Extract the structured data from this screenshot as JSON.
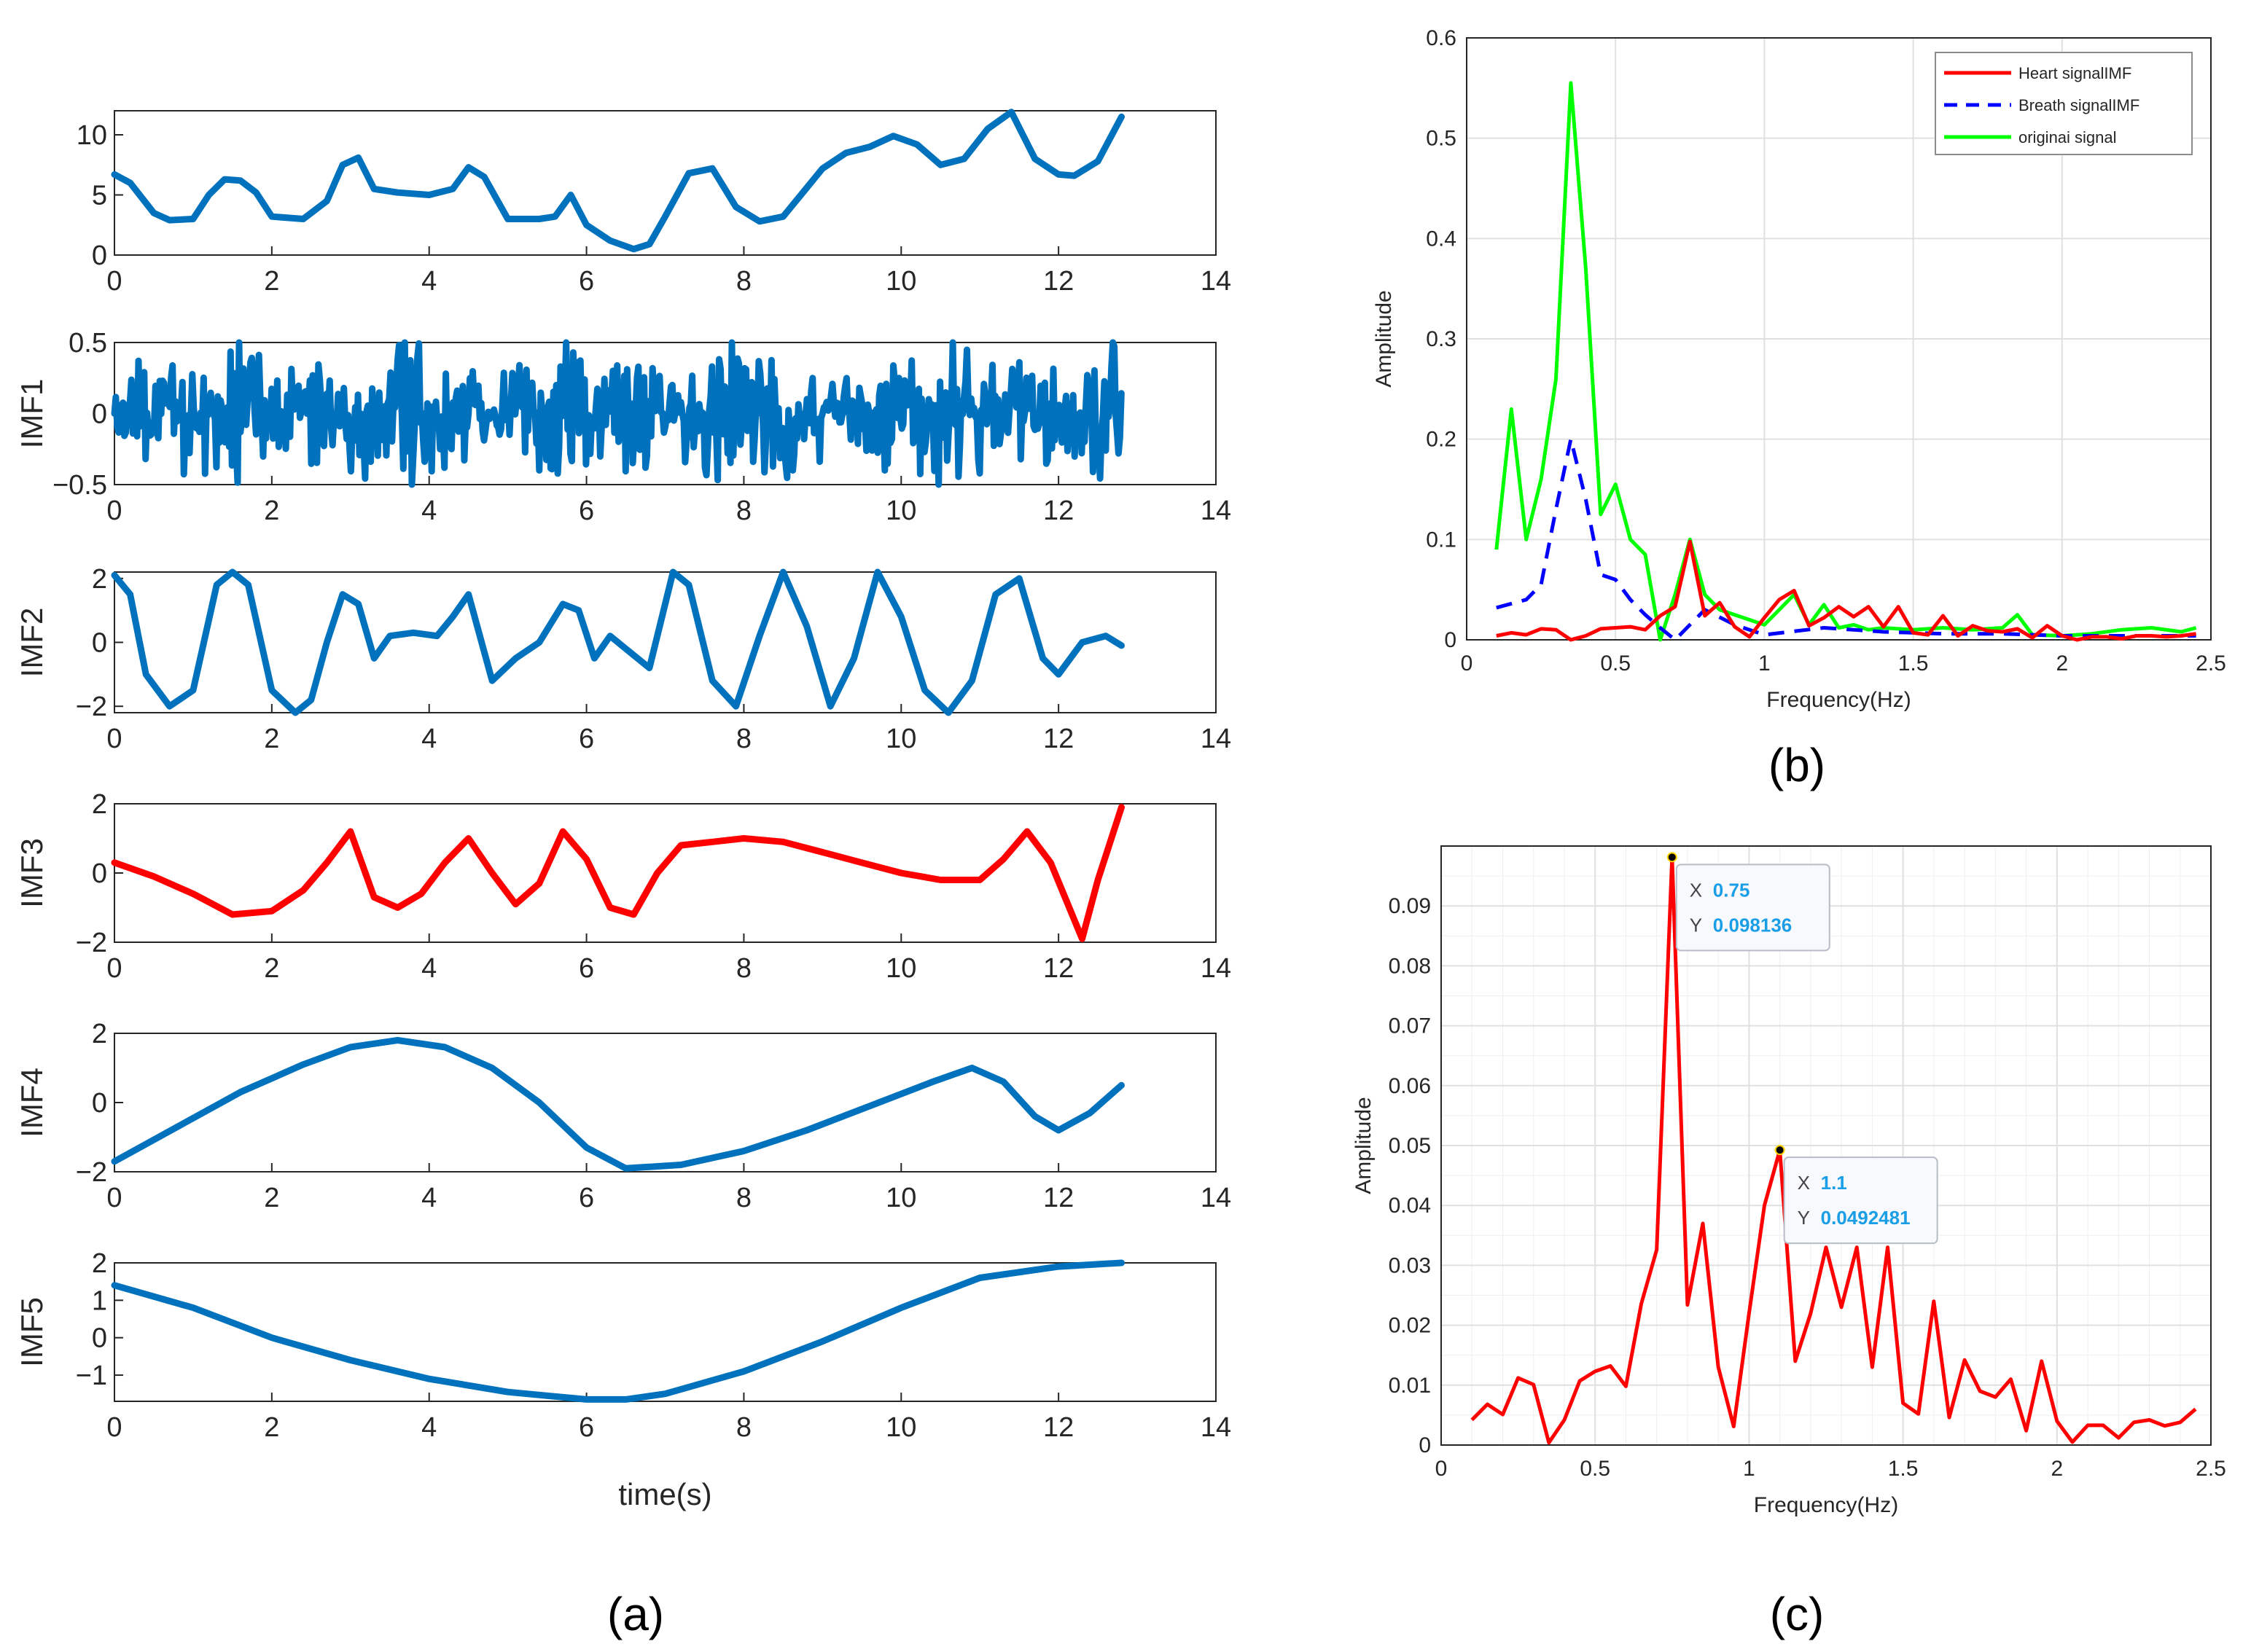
{
  "panel_labels": {
    "a": "(a)",
    "b": "(b)",
    "c": "(c)"
  },
  "colors": {
    "blue": "#0072bd",
    "red": "#ff0000",
    "green": "#00ff00",
    "dash_blue": "#0000ff",
    "grid": "#e0e0e0",
    "axis": "#262626"
  },
  "chart_data": [
    {
      "id": "a",
      "type": "line",
      "title": "",
      "xlabel": "time(s)",
      "xlim": [
        0,
        14
      ],
      "xticks": [
        0,
        2,
        4,
        6,
        8,
        10,
        12,
        14
      ],
      "subplots": [
        {
          "name": "signal",
          "ylabel": "",
          "ylim": [
            0,
            12
          ],
          "yticks": [
            0,
            5,
            10
          ],
          "ytick_labels": [
            "0",
            "5",
            "10"
          ],
          "color": "#0072bd",
          "x": [
            0,
            0.2,
            0.5,
            0.7,
            1.0,
            1.2,
            1.4,
            1.6,
            1.8,
            2.0,
            2.4,
            2.7,
            2.9,
            3.1,
            3.3,
            3.6,
            4.0,
            4.3,
            4.5,
            4.7,
            5.0,
            5.4,
            5.6,
            5.8,
            6.0,
            6.3,
            6.6,
            6.8,
            7.0,
            7.3,
            7.6,
            7.9,
            8.2,
            8.5,
            8.8,
            9.0,
            9.3,
            9.6,
            9.9,
            10.2,
            10.5,
            10.8,
            11.1,
            11.4,
            11.7,
            12.0,
            12.2,
            12.5,
            12.8
          ],
          "y": [
            6.7,
            6.0,
            3.5,
            2.9,
            3.0,
            5.0,
            6.3,
            6.2,
            5.2,
            3.2,
            3.0,
            4.5,
            7.5,
            8.1,
            5.5,
            5.2,
            5.0,
            5.5,
            7.3,
            6.5,
            3.0,
            3.0,
            3.2,
            5.0,
            2.5,
            1.2,
            0.5,
            0.9,
            3.2,
            6.8,
            7.2,
            4.0,
            2.8,
            3.2,
            5.6,
            7.2,
            8.5,
            9.0,
            9.9,
            9.2,
            7.5,
            8.0,
            10.5,
            11.9,
            8.0,
            6.7,
            6.6,
            7.8,
            11.5
          ]
        },
        {
          "name": "IMF1",
          "ylabel": "IMF1",
          "ylim": [
            -0.5,
            0.5
          ],
          "yticks": [
            -0.5,
            0,
            0.5
          ],
          "ytick_labels": [
            "−0.5",
            "0",
            "0.5"
          ],
          "color": "#0072bd",
          "noise": true
        },
        {
          "name": "IMF2",
          "ylabel": "IMF2",
          "ylim": [
            -2.2,
            2.2
          ],
          "yticks": [
            -2,
            0,
            2
          ],
          "ytick_labels": [
            "−2",
            "0",
            "2"
          ],
          "color": "#0072bd",
          "x": [
            0,
            0.2,
            0.4,
            0.7,
            1.0,
            1.3,
            1.5,
            1.7,
            2.0,
            2.3,
            2.5,
            2.7,
            2.9,
            3.1,
            3.3,
            3.5,
            3.8,
            4.1,
            4.3,
            4.5,
            4.8,
            5.1,
            5.4,
            5.7,
            5.9,
            6.1,
            6.3,
            6.5,
            6.8,
            7.1,
            7.3,
            7.6,
            7.9,
            8.2,
            8.5,
            8.8,
            9.1,
            9.4,
            9.7,
            10.0,
            10.3,
            10.6,
            10.9,
            11.2,
            11.5,
            11.8,
            12.0,
            12.3,
            12.6,
            12.8
          ],
          "y": [
            2.1,
            1.5,
            -1.0,
            -2.0,
            -1.5,
            1.8,
            2.2,
            1.8,
            -1.5,
            -2.2,
            -1.8,
            0.0,
            1.5,
            1.2,
            -0.5,
            0.2,
            0.3,
            0.2,
            0.8,
            1.5,
            -1.2,
            -0.5,
            0.0,
            1.2,
            1.0,
            -0.5,
            0.2,
            -0.2,
            -0.8,
            2.2,
            1.8,
            -1.2,
            -2.0,
            0.2,
            2.2,
            0.5,
            -2.0,
            -0.5,
            2.2,
            0.8,
            -1.5,
            -2.2,
            -1.2,
            1.5,
            2.0,
            -0.5,
            -1.0,
            0.0,
            0.2,
            -0.1
          ]
        },
        {
          "name": "IMF3",
          "ylabel": "IMF3",
          "ylim": [
            -2,
            2
          ],
          "yticks": [
            -2,
            0,
            2
          ],
          "ytick_labels": [
            "−2",
            "0",
            "2"
          ],
          "color": "#ff0000",
          "x": [
            0,
            0.5,
            1.0,
            1.5,
            2.0,
            2.4,
            2.7,
            3.0,
            3.3,
            3.6,
            3.9,
            4.2,
            4.5,
            4.8,
            5.1,
            5.4,
            5.7,
            6.0,
            6.3,
            6.6,
            6.9,
            7.2,
            7.6,
            8.0,
            8.5,
            9.0,
            9.5,
            10.0,
            10.5,
            11.0,
            11.3,
            11.6,
            11.9,
            12.1,
            12.3,
            12.5,
            12.8
          ],
          "y": [
            0.3,
            -0.1,
            -0.6,
            -1.2,
            -1.1,
            -0.5,
            0.3,
            1.2,
            -0.7,
            -1.0,
            -0.6,
            0.3,
            1.0,
            0.0,
            -0.9,
            -0.3,
            1.2,
            0.4,
            -1.0,
            -1.2,
            0.0,
            0.8,
            0.9,
            1.0,
            0.9,
            0.6,
            0.3,
            0.0,
            -0.2,
            -0.2,
            0.4,
            1.2,
            0.3,
            -0.8,
            -1.9,
            -0.2,
            1.9
          ]
        },
        {
          "name": "IMF4",
          "ylabel": "IMF4",
          "ylim": [
            -2,
            2
          ],
          "yticks": [
            -2,
            0,
            2
          ],
          "ytick_labels": [
            "−2",
            "0",
            "2"
          ],
          "color": "#0072bd",
          "x": [
            0,
            0.8,
            1.6,
            2.4,
            3.0,
            3.6,
            4.2,
            4.8,
            5.4,
            6.0,
            6.5,
            7.2,
            8.0,
            8.8,
            9.6,
            10.4,
            10.9,
            11.3,
            11.7,
            12.0,
            12.4,
            12.8
          ],
          "y": [
            -1.7,
            -0.7,
            0.3,
            1.1,
            1.6,
            1.8,
            1.6,
            1.0,
            0.0,
            -1.3,
            -1.9,
            -1.8,
            -1.4,
            -0.8,
            -0.1,
            0.6,
            1.0,
            0.6,
            -0.4,
            -0.8,
            -0.3,
            0.5
          ]
        },
        {
          "name": "IMF5",
          "ylabel": "IMF5",
          "ylim": [
            -1.7,
            2.0
          ],
          "yticks": [
            -1,
            0,
            1,
            2
          ],
          "ytick_labels": [
            "−1",
            "0",
            "1",
            "2"
          ],
          "color": "#0072bd",
          "x": [
            0,
            1,
            2,
            3,
            4,
            5,
            6,
            6.5,
            7,
            8,
            9,
            10,
            11,
            12,
            12.8
          ],
          "y": [
            1.4,
            0.8,
            0.0,
            -0.6,
            -1.1,
            -1.45,
            -1.65,
            -1.65,
            -1.5,
            -0.9,
            -0.1,
            0.8,
            1.6,
            1.9,
            2.0
          ]
        }
      ]
    },
    {
      "id": "b",
      "type": "line",
      "title": "",
      "xlabel": "Frequency(Hz)",
      "ylabel": "Amplitude",
      "xlim": [
        0,
        2.5
      ],
      "ylim": [
        0,
        0.6
      ],
      "xticks": [
        0,
        0.5,
        1,
        1.5,
        2,
        2.5
      ],
      "xtick_labels": [
        "0",
        "0.5",
        "1",
        "1.5",
        "2",
        "2.5"
      ],
      "yticks": [
        0,
        0.1,
        0.2,
        0.3,
        0.4,
        0.5,
        0.6
      ],
      "ytick_labels": [
        "0",
        "0.1",
        "0.2",
        "0.3",
        "0.4",
        "0.5",
        "0.6"
      ],
      "grid": true,
      "legend": "top-right",
      "series": [
        {
          "name": "Heart signalIMF",
          "color": "#ff0000",
          "dash": false,
          "x": [
            0.1,
            0.15,
            0.2,
            0.25,
            0.3,
            0.35,
            0.4,
            0.45,
            0.5,
            0.55,
            0.6,
            0.65,
            0.7,
            0.75,
            0.8,
            0.85,
            0.9,
            0.95,
            1.0,
            1.05,
            1.1,
            1.15,
            1.2,
            1.25,
            1.3,
            1.35,
            1.4,
            1.45,
            1.5,
            1.55,
            1.6,
            1.65,
            1.7,
            1.75,
            1.8,
            1.85,
            1.9,
            1.95,
            2.0,
            2.05,
            2.1,
            2.15,
            2.2,
            2.25,
            2.3,
            2.35,
            2.4,
            2.45
          ],
          "y": [
            0.004,
            0.007,
            0.005,
            0.011,
            0.01,
            0.0,
            0.004,
            0.011,
            0.012,
            0.013,
            0.01,
            0.024,
            0.033,
            0.098,
            0.024,
            0.037,
            0.013,
            0.003,
            0.022,
            0.04,
            0.049,
            0.014,
            0.022,
            0.033,
            0.023,
            0.033,
            0.013,
            0.033,
            0.007,
            0.005,
            0.024,
            0.004,
            0.014,
            0.009,
            0.008,
            0.011,
            0.002,
            0.014,
            0.004,
            0.0,
            0.003,
            0.003,
            0.001,
            0.004,
            0.004,
            0.003,
            0.004,
            0.006
          ]
        },
        {
          "name": "Breath signalIMF",
          "color": "#0000ff",
          "dash": true,
          "x": [
            0.1,
            0.2,
            0.25,
            0.3,
            0.35,
            0.4,
            0.45,
            0.5,
            0.55,
            0.6,
            0.65,
            0.7,
            0.8,
            0.9,
            1.0,
            1.2,
            1.4,
            1.6,
            1.8,
            2.0,
            2.2,
            2.45
          ],
          "y": [
            0.032,
            0.04,
            0.055,
            0.13,
            0.2,
            0.14,
            0.065,
            0.06,
            0.04,
            0.025,
            0.012,
            0.0,
            0.03,
            0.015,
            0.005,
            0.012,
            0.008,
            0.006,
            0.006,
            0.004,
            0.004,
            0.004
          ]
        },
        {
          "name": "originai signal",
          "color": "#00ff00",
          "dash": false,
          "x": [
            0.1,
            0.15,
            0.2,
            0.25,
            0.3,
            0.35,
            0.4,
            0.45,
            0.5,
            0.55,
            0.6,
            0.65,
            0.7,
            0.75,
            0.8,
            0.85,
            0.9,
            0.95,
            1.0,
            1.05,
            1.1,
            1.15,
            1.2,
            1.25,
            1.3,
            1.35,
            1.4,
            1.5,
            1.6,
            1.7,
            1.8,
            1.85,
            1.9,
            2.0,
            2.1,
            2.2,
            2.3,
            2.4,
            2.45
          ],
          "y": [
            0.09,
            0.23,
            0.1,
            0.16,
            0.26,
            0.555,
            0.37,
            0.125,
            0.155,
            0.1,
            0.085,
            0.0,
            0.045,
            0.1,
            0.045,
            0.03,
            0.025,
            0.02,
            0.015,
            0.03,
            0.045,
            0.015,
            0.035,
            0.012,
            0.015,
            0.01,
            0.012,
            0.01,
            0.012,
            0.01,
            0.012,
            0.025,
            0.005,
            0.004,
            0.006,
            0.01,
            0.012,
            0.008,
            0.012
          ]
        }
      ]
    },
    {
      "id": "c",
      "type": "line",
      "title": "",
      "xlabel": "Frequency(Hz)",
      "ylabel": "Amplitude",
      "xlim": [
        0,
        2.5
      ],
      "ylim": [
        0,
        0.1
      ],
      "xticks": [
        0,
        0.5,
        1,
        1.5,
        2,
        2.5
      ],
      "xtick_labels": [
        "0",
        "0.5",
        "1",
        "1.5",
        "2",
        "2.5"
      ],
      "yticks": [
        0,
        0.01,
        0.02,
        0.03,
        0.04,
        0.05,
        0.06,
        0.07,
        0.08,
        0.09
      ],
      "ytick_labels": [
        "0",
        "0.01",
        "0.02",
        "0.03",
        "0.04",
        "0.05",
        "0.06",
        "0.07",
        "0.08",
        "0.09"
      ],
      "grid": true,
      "series": [
        {
          "name": "Heart signalIMF",
          "color": "#ff0000",
          "x": [
            0.1,
            0.15,
            0.2,
            0.25,
            0.3,
            0.35,
            0.4,
            0.45,
            0.5,
            0.55,
            0.6,
            0.65,
            0.7,
            0.75,
            0.8,
            0.85,
            0.9,
            0.95,
            1.0,
            1.05,
            1.1,
            1.15,
            1.2,
            1.25,
            1.3,
            1.35,
            1.4,
            1.45,
            1.5,
            1.55,
            1.6,
            1.65,
            1.7,
            1.75,
            1.8,
            1.85,
            1.9,
            1.95,
            2.0,
            2.05,
            2.1,
            2.15,
            2.2,
            2.25,
            2.3,
            2.35,
            2.4,
            2.45
          ],
          "y": [
            0.0042,
            0.0068,
            0.0051,
            0.0112,
            0.0101,
            0.0004,
            0.0042,
            0.0107,
            0.0123,
            0.0132,
            0.0098,
            0.0236,
            0.0326,
            0.098136,
            0.0234,
            0.037,
            0.013,
            0.0031,
            0.022,
            0.04,
            0.0492481,
            0.014,
            0.022,
            0.033,
            0.023,
            0.033,
            0.013,
            0.033,
            0.007,
            0.0052,
            0.024,
            0.0046,
            0.0142,
            0.009,
            0.008,
            0.011,
            0.0024,
            0.014,
            0.004,
            0.0005,
            0.0033,
            0.0033,
            0.0012,
            0.0038,
            0.0042,
            0.0032,
            0.0038,
            0.006
          ]
        }
      ],
      "datatips": [
        {
          "x_label": "X",
          "x_value": "0.75",
          "y_label": "Y",
          "y_value": "0.098136",
          "x": 0.75,
          "y": 0.098136
        },
        {
          "x_label": "X",
          "x_value": "1.1",
          "y_label": "Y",
          "y_value": "0.0492481",
          "x": 1.1,
          "y": 0.0492481
        }
      ]
    }
  ]
}
